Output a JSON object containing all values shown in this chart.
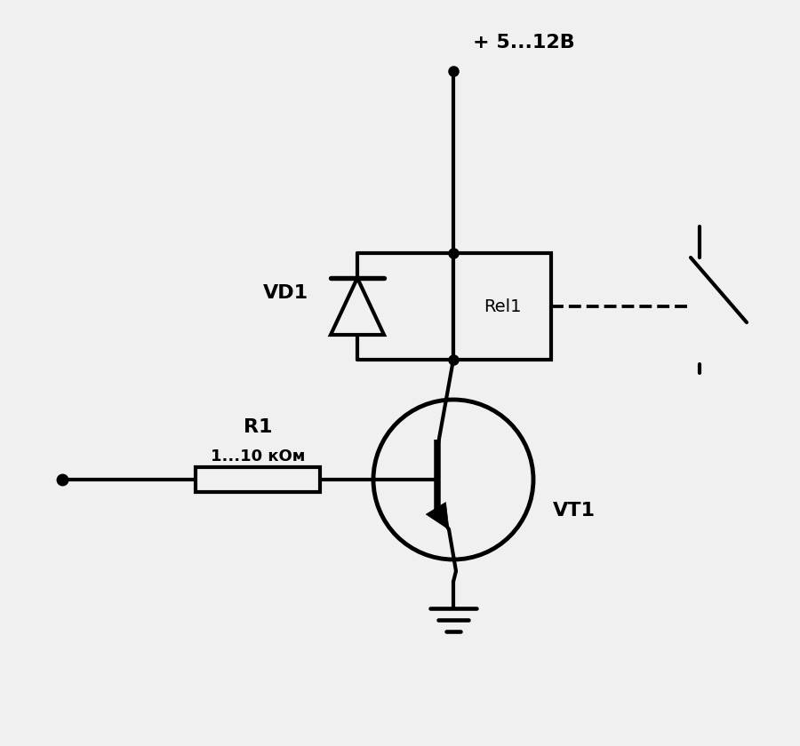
{
  "bg_color": "#f0f0f0",
  "line_color": "#000000",
  "line_width": 3.0,
  "vt1_label": "VT1",
  "vd1_label": "VD1",
  "r1_label": "R1",
  "r1_value": "1...10 кОм",
  "rel1_label": "Rel1",
  "power_label": "+ 5...12В"
}
